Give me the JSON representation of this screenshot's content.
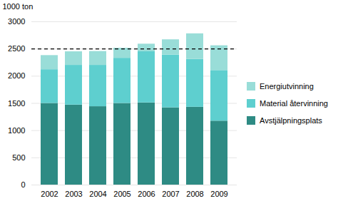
{
  "chart_data": {
    "type": "bar",
    "stacked": true,
    "ylabel": "1000 ton",
    "categories": [
      "2002",
      "2003",
      "2004",
      "2005",
      "2006",
      "2007",
      "2008",
      "2009"
    ],
    "series": [
      {
        "name": "Avstjälpningsplats",
        "color": "#2e8b84",
        "values": [
          1500,
          1470,
          1440,
          1500,
          1510,
          1420,
          1430,
          1175
        ]
      },
      {
        "name": "Material återvinning",
        "color": "#5ecfcf",
        "values": [
          620,
          730,
          760,
          830,
          940,
          970,
          880,
          930
        ]
      },
      {
        "name": "Energiutvinning",
        "color": "#99ddd8",
        "values": [
          260,
          250,
          255,
          185,
          140,
          280,
          470,
          455
        ]
      }
    ],
    "reference_line": {
      "y": 2500,
      "color": "#000000",
      "line_style": "dashed"
    },
    "ylim": [
      0,
      3000
    ],
    "yticks": [
      0,
      500,
      1000,
      1500,
      2000,
      2500,
      3000
    ],
    "grid": true,
    "legend": "right"
  }
}
